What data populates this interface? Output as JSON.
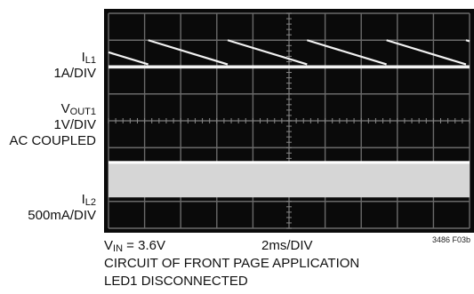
{
  "labels": {
    "il1": {
      "name": "I",
      "sub": "L1",
      "scale": "1A/DIV"
    },
    "vout1": {
      "name": "V",
      "sub": "OUT1",
      "scale": "1V/DIV",
      "coupling": "AC COUPLED"
    },
    "il2": {
      "name": "I",
      "sub": "L2",
      "scale": "500mA/DIV"
    }
  },
  "footer": {
    "vin_name": "V",
    "vin_sub": "IN",
    "vin_value": " = 3.6V",
    "timebase": "2ms/DIV",
    "line2": "CIRCUIT OF FRONT PAGE APPLICATION",
    "line3": "LED1 DISCONNECTED",
    "figure_id": "3486 F03b"
  },
  "chart_data": {
    "type": "line",
    "grid": true,
    "divisions": {
      "x": 10,
      "y": 8
    },
    "series": [
      {
        "trace": "il1",
        "shape": "flat",
        "level_div": 2.0,
        "thickness_div": 0.06
      },
      {
        "trace": "vout1",
        "shape": "sawtooth",
        "start_div": 1.0,
        "end_div": 1.9,
        "period_div": 2.2,
        "phase_div": 1.1
      },
      {
        "trace": "il2",
        "shape": "band",
        "top_div": 5.5,
        "bottom_div": 6.85
      }
    ]
  }
}
